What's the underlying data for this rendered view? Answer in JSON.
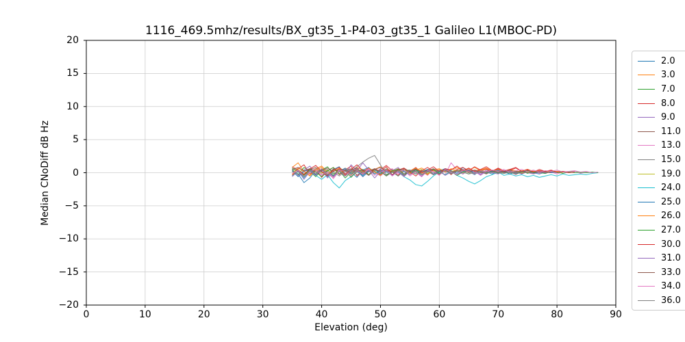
{
  "figure": {
    "background": "#ffffff",
    "axes_color": "#000000",
    "grid_color": "#cccccc",
    "legend_border_color": "#cccccc"
  },
  "chart_data": {
    "type": "line",
    "title": "1116_469.5mhz/results/BX_gt35_1-P4-03_gt35_1 Galileo L1(MBOC-PD)",
    "xlabel": "Elevation (deg)",
    "ylabel": "Median CNoDiff dB Hz",
    "xlim": [
      0,
      90
    ],
    "ylim": [
      -20,
      20
    ],
    "xticks": [
      0,
      10,
      20,
      30,
      40,
      50,
      60,
      70,
      80,
      90
    ],
    "yticks": [
      -20,
      -15,
      -10,
      -5,
      0,
      5,
      10,
      15,
      20
    ],
    "grid": true,
    "legend_position": "right-outside",
    "series": [
      {
        "name": "2.0",
        "color": "#1f77b4",
        "x_start": 35,
        "x_step": 1,
        "y": [
          0.3,
          -0.2,
          -1.5,
          -0.8,
          0.4,
          0.2,
          -0.6,
          0.5,
          0.9,
          -0.3,
          0.1,
          -0.7,
          0.4,
          0.8,
          -0.2,
          0.3,
          -0.5,
          0.1,
          0.6,
          -0.4,
          0.2,
          0.5,
          -0.3,
          0.1,
          0.4,
          -0.2,
          0.6,
          0.3,
          -0.1,
          0.8,
          0.2,
          -0.3,
          0.4,
          0.1,
          -0.2,
          0.3,
          0.0,
          0.2,
          -0.1,
          0.1,
          0.3,
          0.0,
          -0.2,
          0.1,
          0.0,
          0.1
        ]
      },
      {
        "name": "3.0",
        "color": "#ff7f0e",
        "x_start": 35,
        "x_step": 1,
        "y": [
          0.8,
          1.5,
          0.2,
          -0.4,
          0.6,
          1.0,
          0.1,
          -0.5,
          0.7,
          0.3,
          -0.2,
          0.8,
          0.4,
          -0.3,
          0.5,
          0.9,
          0.2,
          -0.4,
          0.3,
          0.6,
          -0.1,
          0.4,
          0.7,
          0.2,
          -0.3,
          0.5,
          0.1,
          0.6,
          0.3,
          -0.2,
          0.4,
          0.8,
          0.3,
          0.5,
          0.1,
          0.4,
          0.2,
          0.5,
          0.3,
          0.1,
          0.4,
          0.2,
          0.0,
          0.3,
          0.1,
          0.2,
          0.1
        ]
      },
      {
        "name": "7.0",
        "color": "#2ca02c",
        "x_start": 35,
        "x_step": 1,
        "y": [
          0.5,
          -0.3,
          0.8,
          0.2,
          -0.6,
          0.4,
          0.9,
          -0.2,
          0.3,
          -0.8,
          0.1,
          0.5,
          -0.4,
          0.7,
          0.2,
          -0.3,
          0.6,
          0.1,
          -0.5,
          0.3,
          0.4,
          -0.2,
          0.1,
          0.5,
          -0.3,
          0.2,
          0.4,
          -0.1,
          0.3,
          0.1,
          -0.2,
          0.4,
          0.2,
          -0.1,
          0.3,
          0.0,
          0.2,
          -0.2,
          0.1,
          0.3,
          -0.1,
          0.2,
          0.0,
          -0.1,
          0.2,
          0.1,
          -0.1,
          0.1,
          0.2,
          0.0,
          0.1,
          0.0
        ]
      },
      {
        "name": "8.0",
        "color": "#d62728",
        "x_start": 35,
        "x_step": 1,
        "y": [
          -0.4,
          0.6,
          1.2,
          -0.2,
          0.5,
          -0.7,
          0.3,
          0.8,
          -0.3,
          0.4,
          1.0,
          -0.5,
          0.2,
          0.7,
          -0.2,
          0.5,
          1.1,
          0.3,
          -0.4,
          0.6,
          0.2,
          0.8,
          -0.1,
          0.4,
          0.9,
          0.2,
          0.6,
          -0.3,
          0.5,
          0.8,
          0.3,
          0.9,
          0.4,
          0.6,
          0.2,
          0.7,
          0.3,
          0.5,
          0.8,
          0.2,
          0.4,
          0.1,
          0.5,
          0.2,
          0.3,
          0.1,
          0.2,
          0.1
        ]
      },
      {
        "name": "9.0",
        "color": "#9467bd",
        "x_start": 35,
        "x_step": 1,
        "y": [
          0.2,
          -0.5,
          0.4,
          1.0,
          -0.3,
          0.6,
          -0.8,
          0.2,
          0.5,
          -0.4,
          1.2,
          0.3,
          1.5,
          0.4,
          -0.2,
          0.6,
          -0.5,
          0.3,
          0.8,
          -0.2,
          0.4,
          0.1,
          -0.6,
          0.3,
          0.5,
          -0.2,
          0.4,
          0.2,
          -0.3,
          0.5,
          0.1,
          0.3,
          -0.2,
          0.4,
          0.1,
          0.2,
          -0.1,
          0.3,
          0.1,
          -0.2,
          0.2,
          0.0,
          0.1,
          -0.1,
          0.2,
          0.0
        ]
      },
      {
        "name": "11.0",
        "color": "#8c564b",
        "x_start": 35,
        "x_step": 1,
        "y": [
          0.6,
          0.3,
          -0.2,
          0.5,
          0.8,
          0.1,
          -0.4,
          0.6,
          0.2,
          -0.5,
          0.4,
          0.7,
          -0.1,
          0.3,
          0.6,
          -0.3,
          0.2,
          0.5,
          0.1,
          -0.4,
          0.3,
          0.6,
          0.2,
          -0.2,
          0.4,
          0.1,
          0.3,
          -0.1,
          0.2,
          0.4,
          0.0,
          0.3,
          0.1,
          -0.2,
          0.3,
          0.1,
          0.2,
          0.0,
          0.2,
          -0.1,
          0.1,
          0.2,
          0.0,
          0.1,
          0.1
        ]
      },
      {
        "name": "13.0",
        "color": "#e377c2",
        "x_start": 35,
        "x_step": 1,
        "y": [
          -0.2,
          0.4,
          -0.7,
          0.3,
          0.6,
          -0.4,
          0.2,
          -0.9,
          0.3,
          0.5,
          -0.3,
          0.2,
          -0.6,
          0.4,
          0.1,
          -0.5,
          0.3,
          0.6,
          -0.2,
          0.4,
          -0.5,
          0.2,
          0.3,
          -0.4,
          0.6,
          0.2,
          -0.3,
          1.5,
          0.4,
          -0.2,
          0.5,
          0.3,
          -0.4,
          0.2,
          0.4,
          -0.1,
          0.3,
          0.1,
          -0.3,
          0.2,
          0.0,
          0.3,
          -0.1,
          0.2,
          0.1,
          -0.2,
          0.1,
          0.0,
          0.2,
          -0.1,
          0.1,
          0.0
        ]
      },
      {
        "name": "15.0",
        "color": "#7f7f7f",
        "x_start": 35,
        "x_step": 1,
        "y": [
          0.4,
          -0.3,
          0.2,
          0.6,
          -0.2,
          0.3,
          0.5,
          -0.4,
          0.2,
          0.7,
          0.3,
          0.9,
          1.6,
          2.2,
          2.6,
          1.2,
          -0.3,
          0.2,
          -0.5,
          0.3,
          0.1,
          -0.2,
          0.4,
          0.2,
          -0.3,
          0.1,
          0.3,
          -0.2,
          0.2,
          0.4,
          0.1,
          -0.1,
          0.2,
          0.0,
          0.3,
          0.1,
          -0.1,
          0.2,
          0.1,
          0.0,
          0.1,
          -0.1,
          0.1,
          0.0
        ]
      },
      {
        "name": "19.0",
        "color": "#bcbd22",
        "x_start": 35,
        "x_step": 1,
        "y": [
          0.1,
          0.5,
          -0.3,
          0.2,
          0.6,
          -0.1,
          0.4,
          -0.6,
          0.2,
          0.3,
          -0.4,
          0.5,
          0.1,
          -0.3,
          0.4,
          0.2,
          -0.5,
          0.3,
          0.1,
          0.4,
          -0.2,
          0.2,
          0.5,
          -0.1,
          0.3,
          0.1,
          -0.3,
          0.2,
          0.4,
          0.0,
          0.2,
          -0.2,
          0.3,
          0.1,
          0.0,
          0.2,
          -0.1,
          0.1,
          0.2,
          0.0,
          0.1,
          0.1,
          0.0
        ]
      },
      {
        "name": "24.0",
        "color": "#17becf",
        "x_start": 35,
        "x_step": 1,
        "y": [
          -0.5,
          0.2,
          -0.8,
          0.3,
          -0.4,
          -1.0,
          -0.3,
          -1.5,
          -2.3,
          -1.2,
          -0.6,
          0.2,
          -0.4,
          0.3,
          -0.2,
          0.4,
          0.1,
          -0.3,
          0.2,
          -0.6,
          -1.1,
          -1.8,
          -2.0,
          -1.3,
          -0.5,
          0.1,
          -0.3,
          0.2,
          -0.4,
          -0.8,
          -1.3,
          -1.7,
          -1.2,
          -0.6,
          -0.3,
          0.1,
          -0.4,
          -0.2,
          -0.5,
          -0.3,
          -0.6,
          -0.4,
          -0.7,
          -0.5,
          -0.3,
          -0.5,
          -0.2,
          -0.4,
          -0.3,
          -0.2,
          -0.3,
          -0.1,
          0.0
        ]
      },
      {
        "name": "25.0",
        "color": "#1f77b4",
        "x_start": 35,
        "x_step": 1,
        "y": [
          0.3,
          -0.6,
          0.2,
          0.5,
          -0.3,
          0.4,
          0.1,
          -0.5,
          0.3,
          0.6,
          -0.2,
          0.4,
          -0.6,
          0.2,
          0.5,
          -0.1,
          0.3,
          -0.4,
          0.6,
          0.2,
          -0.3,
          0.4,
          0.1,
          0.5,
          -0.2,
          0.3,
          0.6,
          0.1,
          -0.3,
          0.2,
          0.4,
          -0.1,
          0.3,
          0.0,
          0.2,
          0.4,
          0.1,
          -0.2,
          0.2,
          0.1,
          0.3,
          0.0,
          0.1,
          0.2,
          0.0,
          0.1
        ]
      },
      {
        "name": "26.0",
        "color": "#ff7f0e",
        "x_start": 35,
        "x_step": 1,
        "y": [
          -0.3,
          0.7,
          0.2,
          -0.5,
          0.4,
          0.8,
          -0.2,
          0.3,
          0.6,
          -0.4,
          0.2,
          0.5,
          -0.3,
          0.7,
          0.1,
          -0.4,
          0.5,
          0.2,
          0.6,
          -0.2,
          0.3,
          0.7,
          0.1,
          -0.3,
          0.4,
          0.6,
          0.2,
          0.5,
          0.8,
          0.3,
          0.6,
          0.2,
          0.4,
          0.7,
          0.3,
          0.5,
          0.2,
          0.4,
          0.1,
          0.3,
          0.5,
          0.2,
          0.3,
          0.1,
          0.2,
          0.1,
          0.0
        ]
      },
      {
        "name": "27.0",
        "color": "#2ca02c",
        "x_start": 35,
        "x_step": 1,
        "y": [
          0.7,
          0.2,
          -0.4,
          0.5,
          0.1,
          -0.6,
          0.3,
          0.8,
          -0.2,
          0.4,
          -0.7,
          0.2,
          0.5,
          -0.3,
          0.6,
          0.1,
          -0.4,
          0.3,
          0.5,
          -0.2,
          0.1,
          0.4,
          -0.3,
          0.2,
          0.5,
          -0.1,
          0.3,
          0.2,
          -0.4,
          0.1,
          0.3,
          -0.2,
          0.2,
          0.0,
          0.3,
          -0.1,
          0.2,
          0.1,
          -0.2,
          0.1,
          0.3,
          0.0,
          0.1,
          -0.1,
          0.2,
          0.0,
          0.1,
          0.1,
          0.0,
          0.1,
          0.0,
          0.1,
          0.0
        ]
      },
      {
        "name": "30.0",
        "color": "#d62728",
        "x_start": 35,
        "x_step": 1,
        "y": [
          0.9,
          0.4,
          -0.3,
          0.6,
          1.1,
          0.2,
          -0.5,
          0.4,
          0.8,
          -0.2,
          0.5,
          1.2,
          0.3,
          -0.4,
          0.6,
          0.2,
          0.9,
          -0.3,
          0.4,
          0.7,
          0.1,
          -0.5,
          0.3,
          0.8,
          0.2,
          -0.3,
          0.6,
          0.4,
          1.0,
          0.3,
          0.7,
          0.2,
          0.5,
          0.9,
          0.3,
          0.6,
          0.1,
          0.4,
          0.7,
          0.2,
          0.5,
          0.1,
          0.3,
          0.2,
          0.4,
          0.1,
          0.2,
          0.0,
          0.1
        ]
      },
      {
        "name": "31.0",
        "color": "#9467bd",
        "x_start": 35,
        "x_step": 1,
        "y": [
          -0.6,
          0.3,
          -1.0,
          0.2,
          -0.4,
          0.5,
          -0.2,
          -0.7,
          0.3,
          -0.5,
          0.2,
          0.6,
          -0.3,
          0.4,
          -0.8,
          0.2,
          0.5,
          -0.4,
          0.1,
          -0.6,
          0.3,
          0.2,
          -0.5,
          0.4,
          -0.2,
          0.3,
          -0.4,
          0.1,
          0.3,
          -0.2,
          0.4,
          0.1,
          -0.3,
          0.2,
          0.0,
          -0.2,
          0.3,
          0.1,
          -0.1,
          0.2,
          0.0,
          -0.2,
          0.1,
          0.0,
          0.1,
          0.0
        ]
      },
      {
        "name": "33.0",
        "color": "#8c564b",
        "x_start": 35,
        "x_step": 1,
        "y": [
          0.5,
          0.8,
          0.3,
          0.6,
          0.1,
          0.4,
          0.7,
          0.2,
          0.5,
          0.3,
          0.6,
          0.1,
          0.4,
          0.2,
          0.5,
          0.8,
          0.3,
          0.1,
          0.4,
          0.6,
          0.2,
          0.5,
          0.1,
          0.3,
          0.6,
          0.2,
          0.4,
          0.1,
          0.3,
          0.5,
          0.2,
          0.4,
          0.0,
          0.2,
          0.3,
          0.1,
          0.2,
          0.4,
          0.1,
          0.2,
          0.0,
          0.1,
          0.2,
          0.1,
          0.0
        ]
      },
      {
        "name": "34.0",
        "color": "#e377c2",
        "x_start": 35,
        "x_step": 1,
        "y": [
          -0.1,
          0.4,
          -0.6,
          0.2,
          0.5,
          -0.3,
          0.1,
          -0.7,
          0.4,
          0.2,
          -0.5,
          0.3,
          -0.2,
          0.6,
          -0.4,
          0.1,
          0.3,
          -0.5,
          0.2,
          0.4,
          -0.3,
          0.1,
          -0.6,
          0.3,
          0.2,
          -0.4,
          0.5,
          0.1,
          -0.3,
          0.4,
          0.2,
          -0.2,
          0.3,
          0.1,
          0.4,
          0.2,
          0.5,
          0.1,
          0.3,
          0.5,
          0.2,
          0.4,
          0.1,
          0.3,
          0.2,
          0.4,
          0.1,
          0.2,
          0.3,
          0.1,
          0.2,
          0.0,
          0.1
        ]
      },
      {
        "name": "36.0",
        "color": "#7f7f7f",
        "x_start": 35,
        "x_step": 1,
        "y": [
          -0.4,
          0.2,
          -0.6,
          0.3,
          -0.2,
          0.5,
          -0.3,
          0.1,
          -0.5,
          0.2,
          0.4,
          -0.3,
          0.1,
          -0.4,
          0.3,
          0.2,
          -0.5,
          0.1,
          0.3,
          -0.2,
          0.4,
          0.1,
          -0.3,
          0.2,
          0.0,
          -0.2,
          0.3,
          -0.1,
          0.2,
          0.1,
          -0.2,
          0.0,
          0.2,
          -0.1,
          0.1,
          0.0,
          -0.1,
          0.1,
          0.0,
          0.1,
          0.0,
          0.0
        ]
      }
    ]
  }
}
